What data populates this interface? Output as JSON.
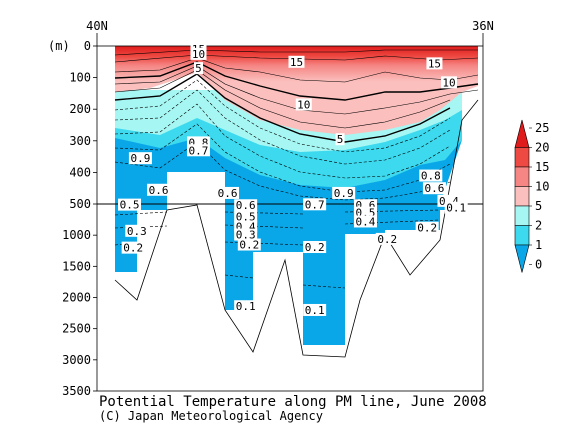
{
  "chart_data": {
    "type": "heatmap",
    "title": "Potential Temperature along PM line, June 2008",
    "credit": "(C) Japan Meteorological Agency",
    "y_unit": "(m)",
    "x_labels": [
      "40N",
      "36N"
    ],
    "y_ticks_upper": [
      0,
      100,
      200,
      300,
      400,
      500
    ],
    "y_ticks_lower": [
      1000,
      1500,
      2000,
      2500,
      3000,
      3500
    ],
    "upper_range": [
      0,
      500
    ],
    "lower_range": [
      500,
      3500
    ],
    "colorbar": {
      "labels": [
        "25",
        "20",
        "15",
        "10",
        "5",
        "2",
        "1",
        "0"
      ],
      "bins": [
        {
          "from": 20,
          "to": 25,
          "color": "#e01b1b"
        },
        {
          "from": 15,
          "to": 20,
          "color": "#ee4a43"
        },
        {
          "from": 10,
          "to": 15,
          "color": "#f58684"
        },
        {
          "from": 5,
          "to": 10,
          "color": "#fbbfbd"
        },
        {
          "from": 2,
          "to": 5,
          "color": "#a6f7f3"
        },
        {
          "from": 1,
          "to": 2,
          "color": "#3dd9ee"
        },
        {
          "from": 0,
          "to": 1,
          "color": "#0aa7e8"
        }
      ]
    },
    "contour_labels": [
      {
        "text": "15",
        "x": 0.23,
        "depth": 10
      },
      {
        "text": "15",
        "x": 0.5,
        "depth": 50
      },
      {
        "text": "15",
        "x": 0.88,
        "depth": 55
      },
      {
        "text": "10",
        "x": 0.23,
        "depth": 25
      },
      {
        "text": "10",
        "x": 0.52,
        "depth": 185
      },
      {
        "text": "10",
        "x": 0.92,
        "depth": 115
      },
      {
        "text": "5",
        "x": 0.23,
        "depth": 70
      },
      {
        "text": "5",
        "x": 0.62,
        "depth": 295
      },
      {
        "text": "0.9",
        "x": 0.07,
        "depth": 355
      },
      {
        "text": "0.9",
        "x": 0.63,
        "depth": 465
      },
      {
        "text": "0.8",
        "x": 0.23,
        "depth": 305
      },
      {
        "text": "0.7",
        "x": 0.23,
        "depth": 330
      },
      {
        "text": "0.6",
        "x": 0.12,
        "depth": 455
      },
      {
        "text": "0.6",
        "x": 0.31,
        "depth": 465
      },
      {
        "text": "0.5",
        "x": 0.04,
        "depth": 510
      },
      {
        "text": "0.7",
        "x": 0.55,
        "depth": 505
      },
      {
        "text": "0.6",
        "x": 0.36,
        "depth": 520
      },
      {
        "text": "0.6",
        "x": 0.69,
        "depth": 520
      },
      {
        "text": "0.5",
        "x": 0.36,
        "depth": 700
      },
      {
        "text": "0.5",
        "x": 0.69,
        "depth": 640
      },
      {
        "text": "0.4",
        "x": 0.36,
        "depth": 860
      },
      {
        "text": "0.4",
        "x": 0.69,
        "depth": 780
      },
      {
        "text": "0.3",
        "x": 0.06,
        "depth": 930
      },
      {
        "text": "0.3",
        "x": 0.36,
        "depth": 990
      },
      {
        "text": "0.2",
        "x": 0.05,
        "depth": 1200
      },
      {
        "text": "0.2",
        "x": 0.37,
        "depth": 1150
      },
      {
        "text": "0.2",
        "x": 0.55,
        "depth": 1190
      },
      {
        "text": "0.2",
        "x": 0.75,
        "depth": 1060
      },
      {
        "text": "0.2",
        "x": 0.86,
        "depth": 880
      },
      {
        "text": "0.1",
        "x": 0.36,
        "depth": 2140
      },
      {
        "text": "0.1",
        "x": 0.55,
        "depth": 2200
      },
      {
        "text": "0.8",
        "x": 0.87,
        "depth": 410
      },
      {
        "text": "0.6",
        "x": 0.88,
        "depth": 450
      },
      {
        "text": "0.4",
        "x": 0.92,
        "depth": 490
      },
      {
        "text": "0.1",
        "x": 0.94,
        "depth": 560
      }
    ]
  }
}
